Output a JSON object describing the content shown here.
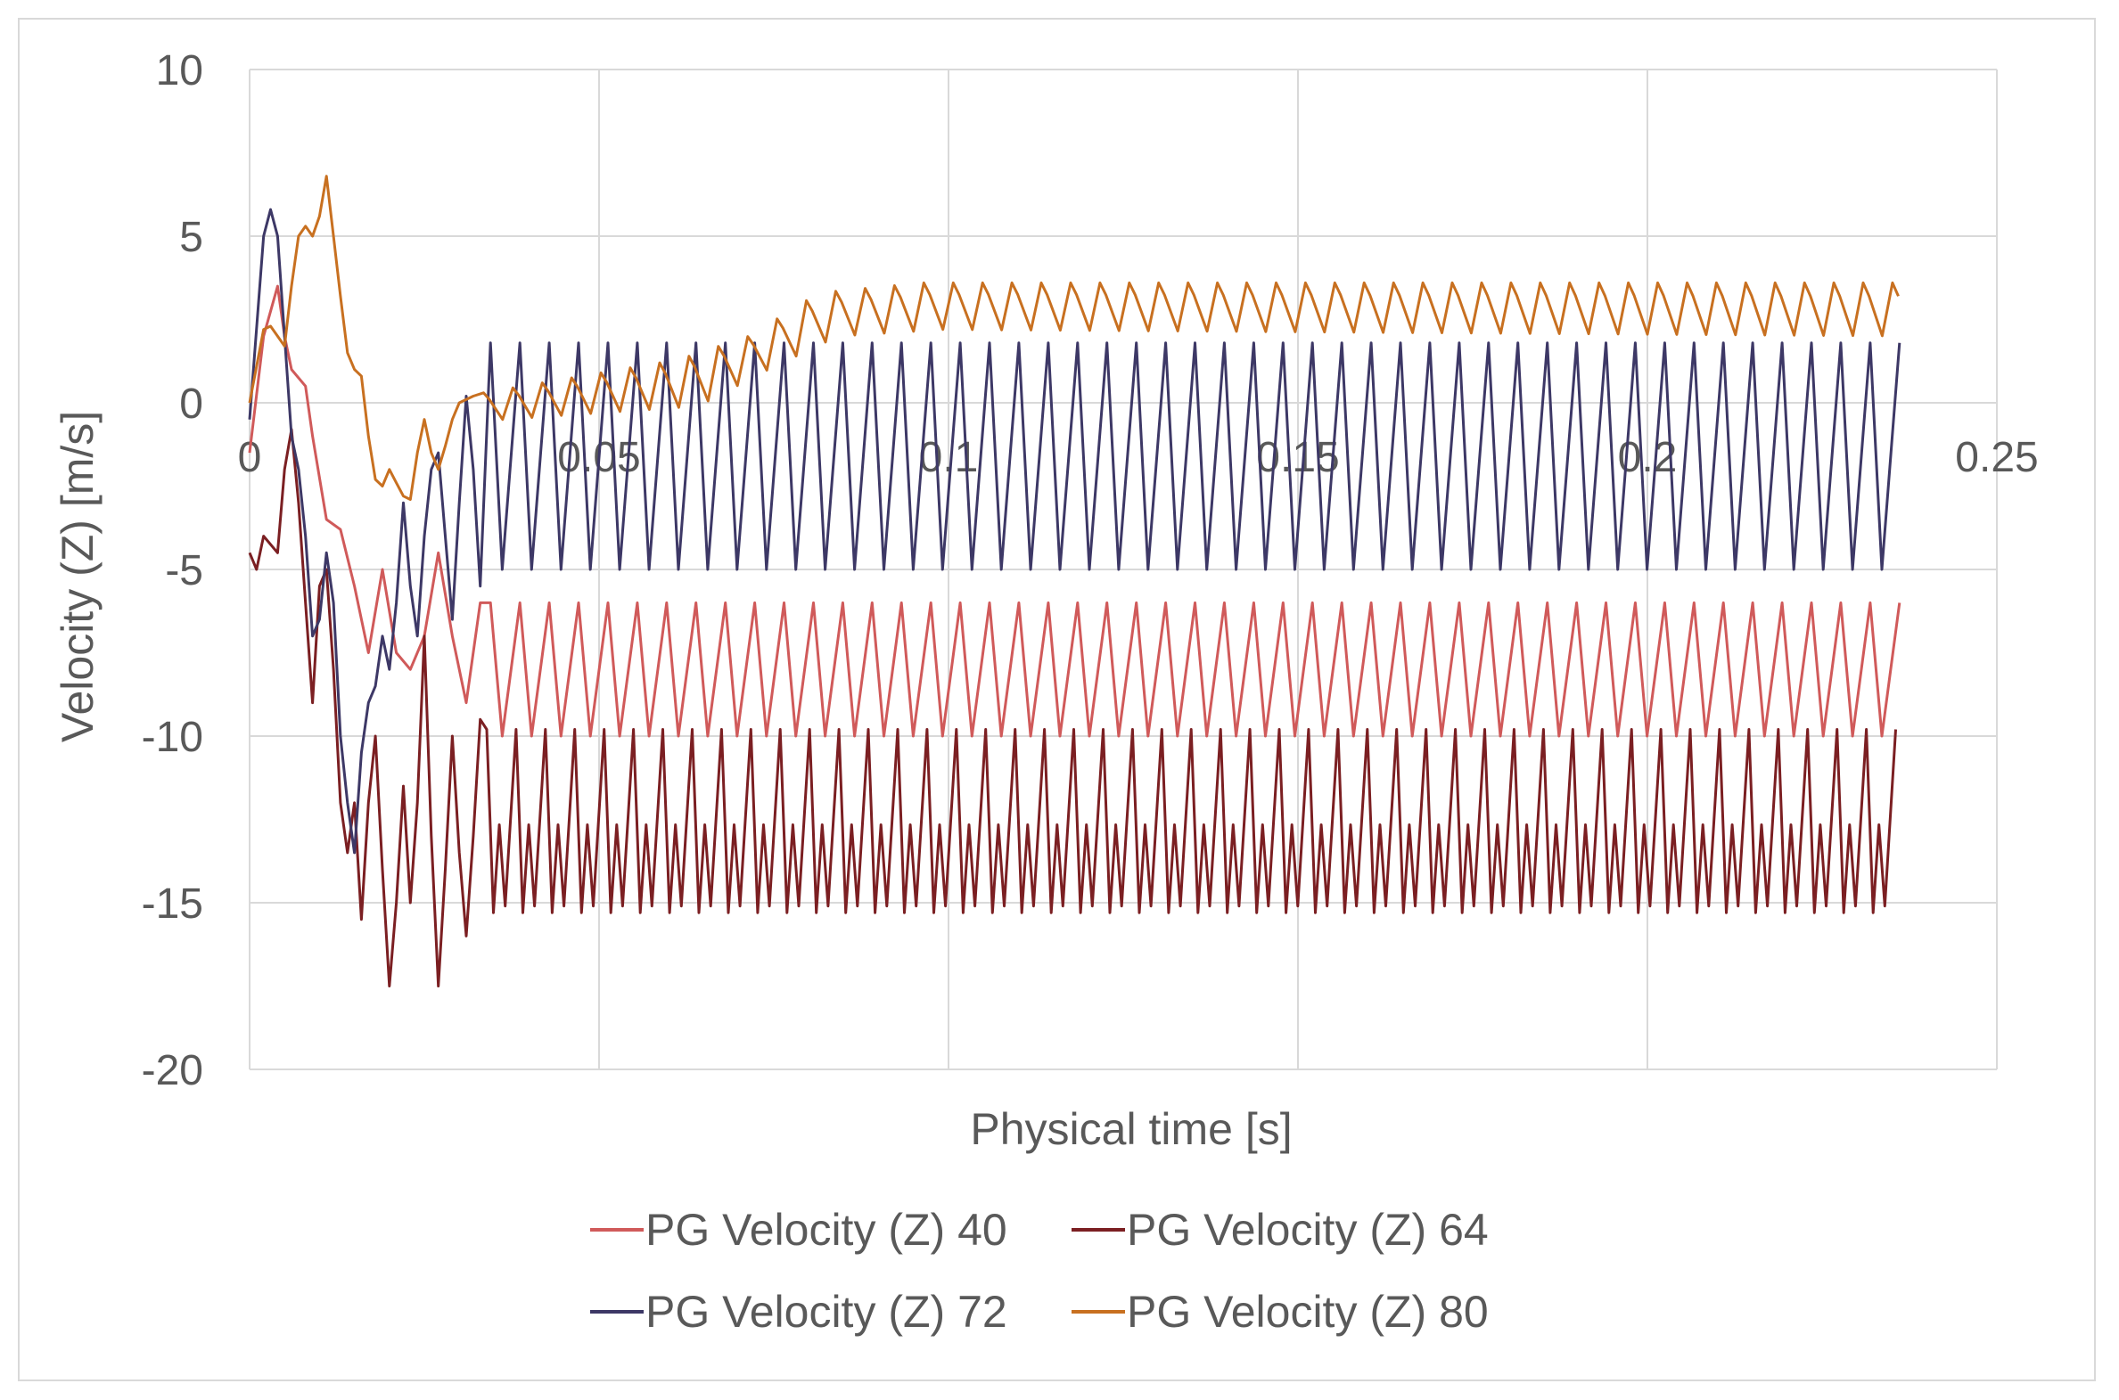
{
  "chart_data": {
    "type": "line",
    "title": "",
    "xlabel": "Physical time [s]",
    "ylabel": "Velocity (Z) [m/s]",
    "xlim": [
      0,
      0.25
    ],
    "ylim": [
      -20,
      10
    ],
    "x_ticks": [
      "0",
      "0.05",
      "0.1",
      "0.15",
      "0.2",
      "0.25"
    ],
    "y_ticks": [
      "10",
      "5",
      "0",
      "-5",
      "-10",
      "-15",
      "-20"
    ],
    "grid": true,
    "legend_position": "bottom",
    "x_end": 0.236,
    "steady_period": 0.0042,
    "series": [
      {
        "name": "PG Velocity (Z) 40",
        "color": "#d05a5a",
        "transient": [
          [
            0,
            -1.5
          ],
          [
            0.002,
            2.0
          ],
          [
            0.004,
            3.5
          ],
          [
            0.005,
            2.0
          ],
          [
            0.006,
            1.0
          ],
          [
            0.008,
            0.5
          ],
          [
            0.009,
            -1.0
          ],
          [
            0.011,
            -3.5
          ],
          [
            0.013,
            -3.8
          ],
          [
            0.015,
            -5.5
          ],
          [
            0.017,
            -7.5
          ],
          [
            0.019,
            -5.0
          ],
          [
            0.021,
            -7.5
          ],
          [
            0.023,
            -8.0
          ],
          [
            0.025,
            -7.0
          ],
          [
            0.027,
            -4.5
          ],
          [
            0.029,
            -7.0
          ],
          [
            0.031,
            -9.0
          ],
          [
            0.033,
            -6.0
          ]
        ],
        "steady": {
          "min": -10.0,
          "max": -6.0,
          "shape": "single"
        }
      },
      {
        "name": "PG Velocity (Z) 64",
        "color": "#7b1f22",
        "transient": [
          [
            0,
            -4.5
          ],
          [
            0.001,
            -5.0
          ],
          [
            0.002,
            -4.0
          ],
          [
            0.004,
            -4.5
          ],
          [
            0.005,
            -2.0
          ],
          [
            0.006,
            -0.8
          ],
          [
            0.007,
            -3.0
          ],
          [
            0.008,
            -6.0
          ],
          [
            0.009,
            -9.0
          ],
          [
            0.01,
            -5.5
          ],
          [
            0.011,
            -5.0
          ],
          [
            0.012,
            -8.0
          ],
          [
            0.013,
            -12.0
          ],
          [
            0.014,
            -13.5
          ],
          [
            0.015,
            -12.0
          ],
          [
            0.016,
            -15.5
          ],
          [
            0.017,
            -12.0
          ],
          [
            0.018,
            -10.0
          ],
          [
            0.019,
            -14.0
          ],
          [
            0.02,
            -17.5
          ],
          [
            0.021,
            -15.0
          ],
          [
            0.022,
            -11.5
          ],
          [
            0.023,
            -15.0
          ],
          [
            0.024,
            -12.0
          ],
          [
            0.025,
            -7.0
          ],
          [
            0.026,
            -13.0
          ],
          [
            0.027,
            -17.5
          ],
          [
            0.028,
            -14.0
          ],
          [
            0.029,
            -10.0
          ],
          [
            0.03,
            -13.5
          ],
          [
            0.031,
            -16.0
          ],
          [
            0.032,
            -13.0
          ],
          [
            0.033,
            -9.5
          ]
        ],
        "steady": {
          "min": -15.3,
          "max": -9.8,
          "shape": "double"
        }
      },
      {
        "name": "PG Velocity (Z) 72",
        "color": "#3d3866",
        "transient": [
          [
            0,
            -0.5
          ],
          [
            0.002,
            5.0
          ],
          [
            0.003,
            5.8
          ],
          [
            0.004,
            5.0
          ],
          [
            0.005,
            2.0
          ],
          [
            0.006,
            -1.0
          ],
          [
            0.007,
            -2.0
          ],
          [
            0.008,
            -4.0
          ],
          [
            0.009,
            -7.0
          ],
          [
            0.01,
            -6.5
          ],
          [
            0.011,
            -4.5
          ],
          [
            0.012,
            -6.0
          ],
          [
            0.013,
            -10.0
          ],
          [
            0.014,
            -12.0
          ],
          [
            0.015,
            -13.5
          ],
          [
            0.016,
            -10.5
          ],
          [
            0.017,
            -9.0
          ],
          [
            0.018,
            -8.5
          ],
          [
            0.019,
            -7.0
          ],
          [
            0.02,
            -8.0
          ],
          [
            0.021,
            -6.0
          ],
          [
            0.022,
            -3.0
          ],
          [
            0.023,
            -5.5
          ],
          [
            0.024,
            -7.0
          ],
          [
            0.025,
            -4.0
          ],
          [
            0.026,
            -2.0
          ],
          [
            0.027,
            -1.5
          ],
          [
            0.028,
            -4.0
          ],
          [
            0.029,
            -6.5
          ],
          [
            0.03,
            -3.0
          ],
          [
            0.031,
            0.2
          ],
          [
            0.032,
            -2.0
          ],
          [
            0.033,
            -5.5
          ]
        ],
        "steady": {
          "min": -5.0,
          "max": 1.8,
          "shape": "single"
        }
      },
      {
        "name": "PG Velocity (Z) 80",
        "color": "#c87020",
        "transient": [
          [
            0,
            0
          ],
          [
            0.002,
            2.2
          ],
          [
            0.003,
            2.3
          ],
          [
            0.004,
            2.0
          ],
          [
            0.005,
            1.7
          ],
          [
            0.006,
            3.5
          ],
          [
            0.007,
            5.0
          ],
          [
            0.008,
            5.3
          ],
          [
            0.009,
            5.0
          ],
          [
            0.01,
            5.6
          ],
          [
            0.011,
            6.8
          ],
          [
            0.012,
            5.0
          ],
          [
            0.013,
            3.2
          ],
          [
            0.014,
            1.5
          ],
          [
            0.015,
            1.0
          ],
          [
            0.016,
            0.8
          ],
          [
            0.017,
            -1.0
          ],
          [
            0.018,
            -2.3
          ],
          [
            0.019,
            -2.5
          ],
          [
            0.02,
            -2.0
          ],
          [
            0.021,
            -2.4
          ],
          [
            0.022,
            -2.8
          ],
          [
            0.023,
            -2.9
          ],
          [
            0.024,
            -1.5
          ],
          [
            0.025,
            -0.5
          ],
          [
            0.026,
            -1.5
          ],
          [
            0.027,
            -2.0
          ],
          [
            0.028,
            -1.3
          ],
          [
            0.029,
            -0.5
          ],
          [
            0.03,
            0.0
          ],
          [
            0.032,
            0.2
          ]
        ],
        "steady": {
          "segments": [
            [
              0.032,
              -0.5,
              0.3
            ],
            [
              0.06,
              -0.1,
              1.3
            ],
            [
              0.07,
              1.0,
              2.0
            ],
            [
              0.08,
              2.0,
              3.3
            ],
            [
              0.095,
              2.2,
              3.6
            ],
            [
              0.236,
              2.0,
              3.6
            ]
          ]
        }
      }
    ]
  }
}
